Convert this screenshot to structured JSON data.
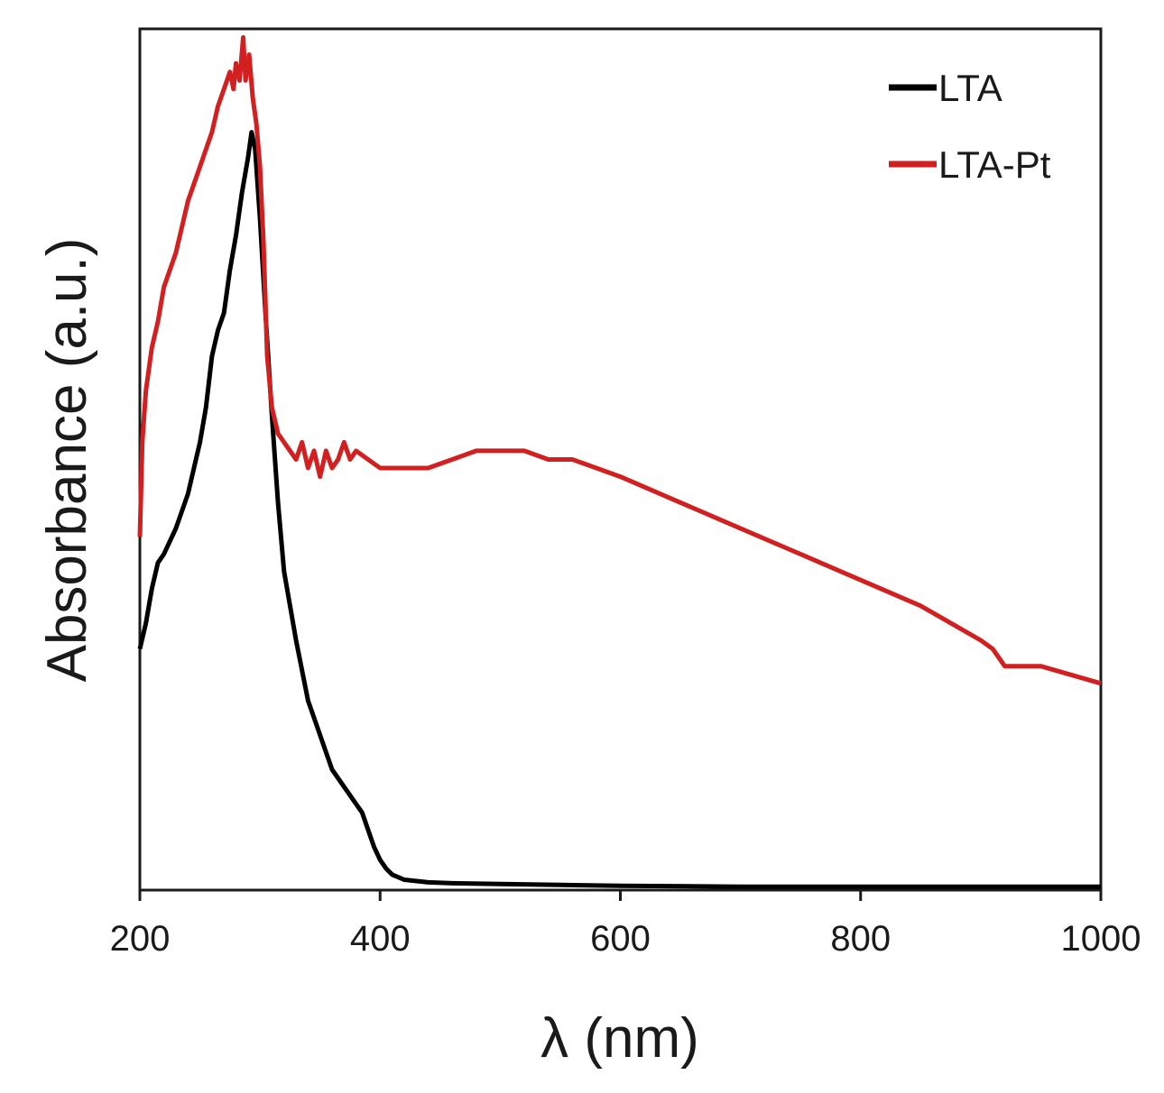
{
  "chart_data": {
    "type": "line",
    "title": "",
    "xlabel": "λ (nm)",
    "ylabel": "Absorbance (a.u.)",
    "xlim": [
      200,
      1000
    ],
    "ylim": [
      0,
      1
    ],
    "xticks": [
      200,
      400,
      600,
      800,
      1000
    ],
    "xtick_labels": [
      "200",
      "400",
      "600",
      "800",
      "1000"
    ],
    "yticks_shown": false,
    "grid": false,
    "legend_position": "top-right",
    "series": [
      {
        "name": "LTA",
        "color": "#000000",
        "x": [
          200,
          205,
          210,
          215,
          220,
          230,
          240,
          250,
          255,
          260,
          265,
          270,
          275,
          280,
          285,
          290,
          293,
          296,
          300,
          305,
          310,
          315,
          320,
          330,
          340,
          350,
          360,
          370,
          380,
          385,
          390,
          395,
          400,
          405,
          410,
          420,
          440,
          460,
          500,
          550,
          600,
          700,
          800,
          900,
          1000
        ],
        "y": [
          0.28,
          0.31,
          0.35,
          0.38,
          0.39,
          0.42,
          0.46,
          0.52,
          0.56,
          0.62,
          0.65,
          0.67,
          0.72,
          0.76,
          0.81,
          0.85,
          0.88,
          0.86,
          0.78,
          0.66,
          0.55,
          0.45,
          0.37,
          0.29,
          0.22,
          0.18,
          0.14,
          0.12,
          0.1,
          0.09,
          0.07,
          0.05,
          0.035,
          0.025,
          0.018,
          0.012,
          0.009,
          0.008,
          0.007,
          0.006,
          0.005,
          0.004,
          0.004,
          0.004,
          0.004
        ]
      },
      {
        "name": "LTA-Pt",
        "color": "#d21f1f",
        "x": [
          200,
          202,
          205,
          210,
          215,
          220,
          230,
          240,
          250,
          255,
          260,
          265,
          270,
          275,
          278,
          280,
          283,
          286,
          288,
          291,
          294,
          297,
          300,
          303,
          306,
          310,
          315,
          320,
          325,
          330,
          335,
          340,
          345,
          350,
          355,
          360,
          365,
          370,
          375,
          380,
          390,
          400,
          420,
          440,
          460,
          480,
          500,
          520,
          540,
          560,
          580,
          600,
          650,
          700,
          750,
          800,
          850,
          900,
          910,
          920,
          950,
          1000
        ],
        "y": [
          0.41,
          0.52,
          0.58,
          0.63,
          0.66,
          0.7,
          0.74,
          0.8,
          0.84,
          0.86,
          0.88,
          0.91,
          0.93,
          0.95,
          0.93,
          0.96,
          0.94,
          0.99,
          0.94,
          0.97,
          0.92,
          0.89,
          0.84,
          0.75,
          0.62,
          0.56,
          0.53,
          0.52,
          0.51,
          0.5,
          0.52,
          0.49,
          0.51,
          0.48,
          0.51,
          0.49,
          0.5,
          0.52,
          0.5,
          0.51,
          0.5,
          0.49,
          0.49,
          0.49,
          0.5,
          0.51,
          0.51,
          0.51,
          0.5,
          0.5,
          0.49,
          0.48,
          0.45,
          0.42,
          0.39,
          0.36,
          0.33,
          0.29,
          0.28,
          0.26,
          0.26,
          0.24
        ]
      }
    ]
  }
}
